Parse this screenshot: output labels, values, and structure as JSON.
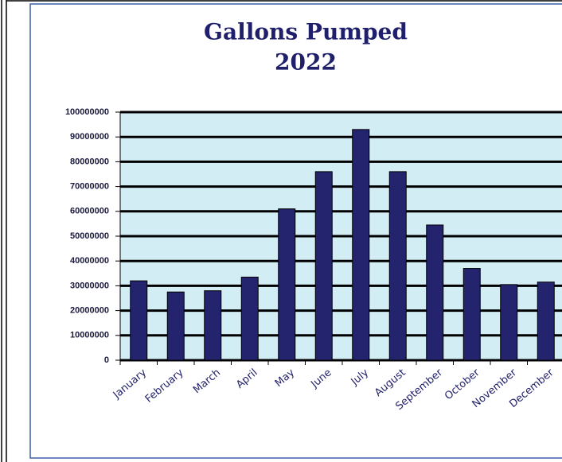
{
  "chart_data": {
    "type": "bar",
    "title": "Gallons Pumped",
    "subtitle": "2022",
    "categories": [
      "January",
      "February",
      "March",
      "April",
      "May",
      "June",
      "July",
      "August",
      "September",
      "October",
      "November",
      "December"
    ],
    "values": [
      32000000,
      27500000,
      28000000,
      33500000,
      61000000,
      76000000,
      93000000,
      76000000,
      54500000,
      37000000,
      30500000,
      31500000
    ],
    "color": "#23236e",
    "ylim": [
      0,
      100000000
    ],
    "yticks": [
      0,
      10000000,
      20000000,
      30000000,
      40000000,
      50000000,
      60000000,
      70000000,
      80000000,
      90000000,
      100000000
    ],
    "grid": true
  }
}
